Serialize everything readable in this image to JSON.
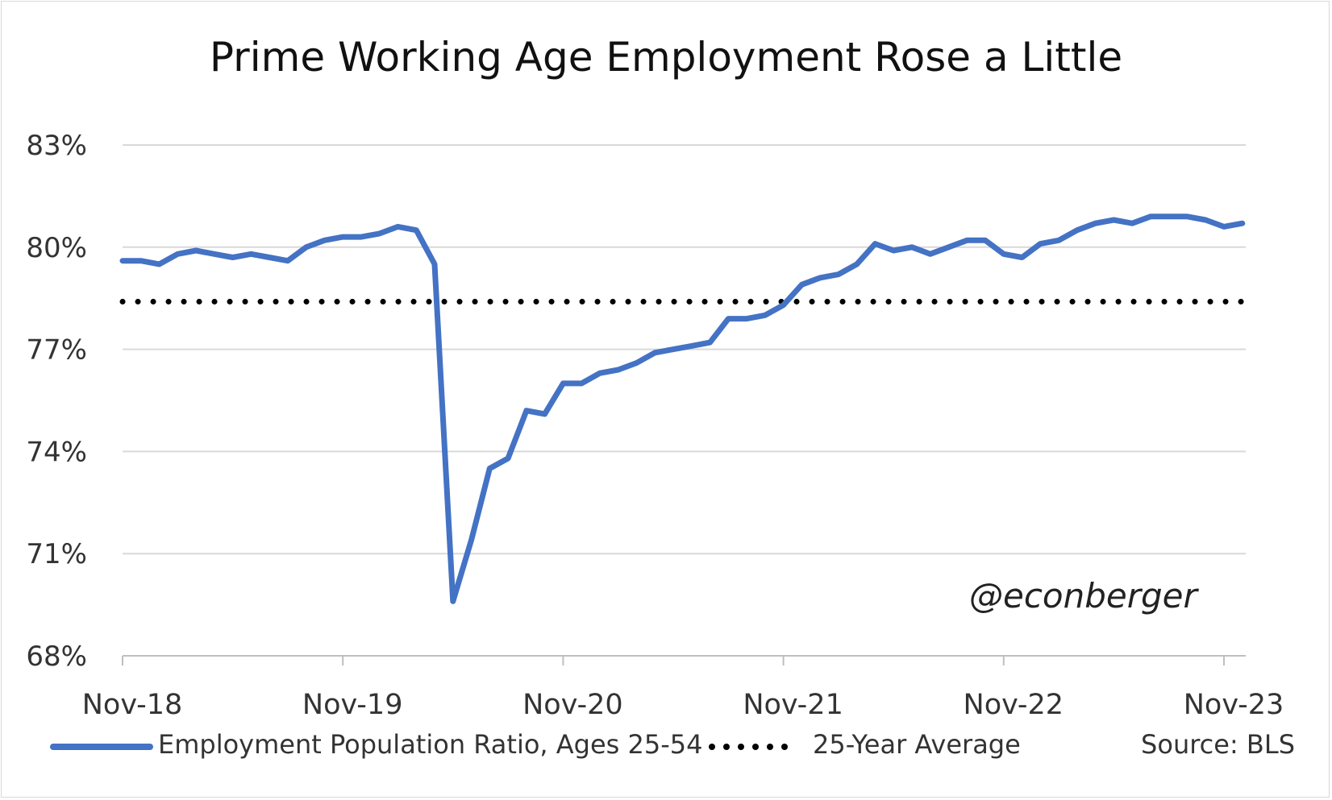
{
  "chart_data": {
    "type": "line",
    "title": "Prime Working Age Employment Rose a Little",
    "xlabel": "",
    "ylabel": "",
    "ylim": [
      68,
      83
    ],
    "yticks": [
      "68%",
      "71%",
      "74%",
      "77%",
      "80%",
      "83%"
    ],
    "ytick_values": [
      68,
      71,
      74,
      77,
      80,
      83
    ],
    "xticks": [
      "Nov-18",
      "Nov-19",
      "Nov-20",
      "Nov-21",
      "Nov-22",
      "Nov-23"
    ],
    "start": "Nov-18",
    "grid": true,
    "legend_position": "bottom",
    "series": [
      {
        "name": "Employment Population Ratio, Ages 25-54",
        "color": "#4472C4",
        "style": "solid",
        "values": [
          79.6,
          79.6,
          79.5,
          79.8,
          79.9,
          79.8,
          79.7,
          79.8,
          79.7,
          79.6,
          80.0,
          80.2,
          80.3,
          80.3,
          80.4,
          80.6,
          80.5,
          79.5,
          69.6,
          71.4,
          73.5,
          73.8,
          75.2,
          75.1,
          76.0,
          76.0,
          76.3,
          76.4,
          76.6,
          76.9,
          77.0,
          77.1,
          77.2,
          77.9,
          77.9,
          78.0,
          78.3,
          78.9,
          79.1,
          79.2,
          79.5,
          80.1,
          79.9,
          80.0,
          79.8,
          80.0,
          80.2,
          80.2,
          79.8,
          79.7,
          80.1,
          80.2,
          80.5,
          80.7,
          80.8,
          80.7,
          80.9,
          80.9,
          80.9,
          80.8,
          80.6,
          80.7
        ]
      },
      {
        "name": "25-Year Average",
        "color": "#000000",
        "style": "dotted",
        "value": 78.4
      }
    ],
    "annotations": [
      "@econberger"
    ],
    "source": "Source: BLS"
  }
}
